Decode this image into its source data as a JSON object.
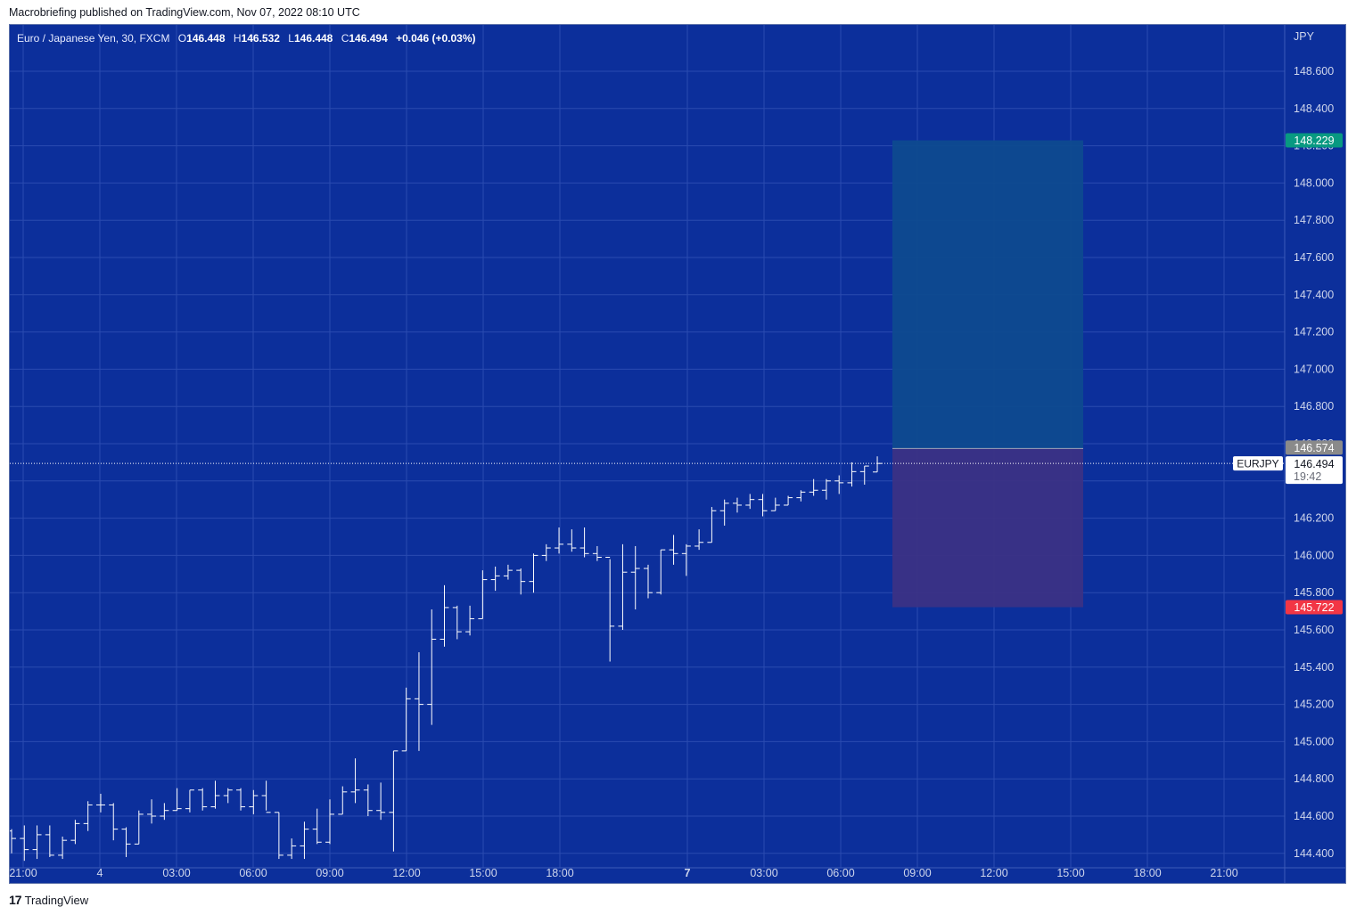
{
  "header": {
    "published": "Macrobriefing published on TradingView.com, Nov 07, 2022 08:10 UTC"
  },
  "legend": {
    "name": "Euro / Japanese Yen, 30, FXCM",
    "o_label": "O",
    "o": "146.448",
    "h_label": "H",
    "h": "146.532",
    "l_label": "L",
    "l": "146.448",
    "c_label": "C",
    "c": "146.494",
    "change": "+0.046 (+0.03%)"
  },
  "footer": {
    "brand": "TradingView",
    "logo": "17"
  },
  "colors": {
    "background": "#0c2f9b",
    "bars": "#ffffff",
    "target_zone": "#0e4a8f",
    "stop_zone": "#3b3185",
    "target_label": "#089981",
    "stop_label": "#f23645",
    "entry_label": "#8a8a8a"
  },
  "chart_data": {
    "type": "ohlc",
    "symbol": "EURJPY",
    "currency": "JPY",
    "interval": "30",
    "y_range": [
      144.34,
      148.78
    ],
    "y_ticks": [
      "148.600",
      "148.400",
      "148.200",
      "148.000",
      "147.800",
      "147.600",
      "147.400",
      "147.200",
      "147.000",
      "146.800",
      "146.600",
      "146.400",
      "146.200",
      "146.000",
      "145.800",
      "145.600",
      "145.400"
    ],
    "y_ticks_low": [
      "144.800",
      "144.600",
      "144.400",
      "145.200",
      "145.000"
    ],
    "x_ticks": [
      {
        "label": "21:00",
        "bold": false
      },
      {
        "label": "4",
        "bold": false
      },
      {
        "label": "03:00",
        "bold": false
      },
      {
        "label": "06:00",
        "bold": false
      },
      {
        "label": "09:00",
        "bold": false
      },
      {
        "label": "12:00",
        "bold": false
      },
      {
        "label": "15:00",
        "bold": false
      },
      {
        "label": "18:00",
        "bold": false
      },
      {
        "label": "7",
        "bold": true
      },
      {
        "label": "03:00",
        "bold": false
      },
      {
        "label": "06:00",
        "bold": false
      },
      {
        "label": "09:00",
        "bold": false
      },
      {
        "label": "12:00",
        "bold": false
      },
      {
        "label": "15:00",
        "bold": false
      },
      {
        "label": "18:00",
        "bold": false
      },
      {
        "label": "21:00",
        "bold": false
      }
    ],
    "position": {
      "side": "long",
      "target": "148.229",
      "entry": "146.574",
      "stop": "145.722"
    },
    "last_price": {
      "symbol": "EURJPY",
      "price": "146.494",
      "countdown": "19:42"
    },
    "bars": [
      [
        144.52,
        144.53,
        144.4,
        144.48
      ],
      [
        144.48,
        144.55,
        144.36,
        144.42
      ],
      [
        144.42,
        144.55,
        144.37,
        144.5
      ],
      [
        144.5,
        144.55,
        144.38,
        144.39
      ],
      [
        144.39,
        144.49,
        144.37,
        144.47
      ],
      [
        144.47,
        144.58,
        144.45,
        144.56
      ],
      [
        144.56,
        144.68,
        144.52,
        144.66
      ],
      [
        144.66,
        144.72,
        144.62,
        144.66
      ],
      [
        144.66,
        144.67,
        144.47,
        144.53
      ],
      [
        144.53,
        144.54,
        144.38,
        144.45
      ],
      [
        144.45,
        144.63,
        144.45,
        144.61
      ],
      [
        144.61,
        144.69,
        144.56,
        144.6
      ],
      [
        144.6,
        144.67,
        144.58,
        144.63
      ],
      [
        144.63,
        144.75,
        144.63,
        144.64
      ],
      [
        144.64,
        144.74,
        144.62,
        144.74
      ],
      [
        144.74,
        144.75,
        144.63,
        144.65
      ],
      [
        144.65,
        144.79,
        144.64,
        144.71
      ],
      [
        144.71,
        144.75,
        144.67,
        144.74
      ],
      [
        144.74,
        144.75,
        144.63,
        144.65
      ],
      [
        144.65,
        144.74,
        144.61,
        144.71
      ],
      [
        144.71,
        144.79,
        144.63,
        144.62
      ],
      [
        144.62,
        144.62,
        144.37,
        144.39
      ],
      [
        144.39,
        144.48,
        144.37,
        144.44
      ],
      [
        144.44,
        144.57,
        144.37,
        144.53
      ],
      [
        144.53,
        144.64,
        144.45,
        144.46
      ],
      [
        144.46,
        144.69,
        144.45,
        144.61
      ],
      [
        144.61,
        144.76,
        144.61,
        144.73
      ],
      [
        144.73,
        144.91,
        144.67,
        144.74
      ],
      [
        144.74,
        144.77,
        144.6,
        144.63
      ],
      [
        144.63,
        144.78,
        144.58,
        144.62
      ],
      [
        144.62,
        144.95,
        144.41,
        144.95
      ],
      [
        144.95,
        145.29,
        144.95,
        145.23
      ],
      [
        145.23,
        145.48,
        144.95,
        145.2
      ],
      [
        145.2,
        145.71,
        145.09,
        145.55
      ],
      [
        145.55,
        145.84,
        145.51,
        145.72
      ],
      [
        145.72,
        145.73,
        145.55,
        145.59
      ],
      [
        145.59,
        145.73,
        145.57,
        145.66
      ],
      [
        145.66,
        145.92,
        145.66,
        145.87
      ],
      [
        145.87,
        145.94,
        145.81,
        145.89
      ],
      [
        145.89,
        145.95,
        145.87,
        145.92
      ],
      [
        145.92,
        145.93,
        145.79,
        145.86
      ],
      [
        145.86,
        146.01,
        145.8,
        146.0
      ],
      [
        146.0,
        146.06,
        145.97,
        146.04
      ],
      [
        146.04,
        146.15,
        146.01,
        146.06
      ],
      [
        146.06,
        146.14,
        146.02,
        146.04
      ],
      [
        146.04,
        146.15,
        145.99,
        146.01
      ],
      [
        146.01,
        146.05,
        145.97,
        145.99
      ],
      [
        145.99,
        145.98,
        145.43,
        145.62
      ],
      [
        145.62,
        146.06,
        145.6,
        145.91
      ],
      [
        145.91,
        146.05,
        145.71,
        145.93
      ],
      [
        145.93,
        145.95,
        145.77,
        145.8
      ],
      [
        145.8,
        146.03,
        145.79,
        146.03
      ],
      [
        146.03,
        146.11,
        145.95,
        146.01
      ],
      [
        146.01,
        146.06,
        145.89,
        146.05
      ],
      [
        146.05,
        146.14,
        146.03,
        146.07
      ],
      [
        146.07,
        146.26,
        146.07,
        146.24
      ],
      [
        146.24,
        146.3,
        146.16,
        146.28
      ],
      [
        146.28,
        146.31,
        146.23,
        146.27
      ],
      [
        146.27,
        146.33,
        146.25,
        146.3
      ],
      [
        146.3,
        146.33,
        146.21,
        146.24
      ],
      [
        146.24,
        146.31,
        146.24,
        146.27
      ],
      [
        146.27,
        146.32,
        146.27,
        146.31
      ],
      [
        146.31,
        146.35,
        146.29,
        146.34
      ],
      [
        146.34,
        146.41,
        146.32,
        146.35
      ],
      [
        146.35,
        146.41,
        146.3,
        146.4
      ],
      [
        146.4,
        146.43,
        146.33,
        146.39
      ],
      [
        146.39,
        146.5,
        146.37,
        146.45
      ],
      [
        146.45,
        146.48,
        146.38,
        146.48
      ],
      [
        146.448,
        146.532,
        146.448,
        146.494
      ]
    ]
  }
}
